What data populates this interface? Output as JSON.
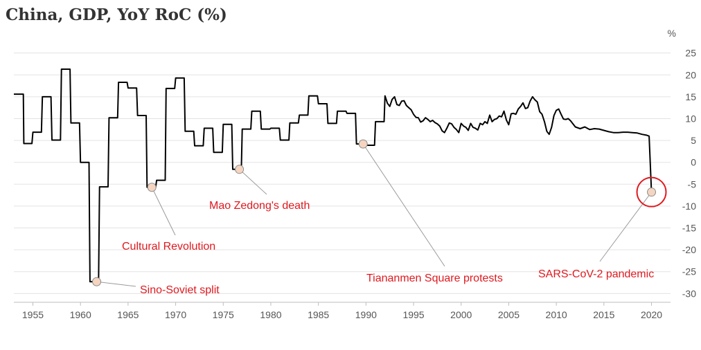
{
  "chart_data": {
    "type": "line",
    "title": "China, GDP, YoY RoC (%)",
    "ylabel": "%",
    "xlabel": "",
    "xlim": [
      1953,
      2022
    ],
    "ylim": [
      -32,
      27
    ],
    "yticks": [
      25,
      20,
      15,
      10,
      5,
      0,
      -5,
      -10,
      -15,
      -20,
      -25,
      -30
    ],
    "ytick_labels": [
      "25",
      "20",
      "15",
      "10",
      "5",
      "0",
      "-5",
      "-10",
      "-15",
      "-20",
      "-25",
      "-30"
    ],
    "xticks": [
      1955,
      1960,
      1965,
      1970,
      1975,
      1980,
      1985,
      1990,
      1995,
      2000,
      2005,
      2010,
      2015,
      2020
    ],
    "xtick_labels": [
      "1955",
      "1960",
      "1965",
      "1970",
      "1975",
      "1980",
      "1985",
      "1990",
      "1995",
      "2000",
      "2005",
      "2010",
      "2015",
      "2020"
    ],
    "grid": true,
    "line_color": "#000000",
    "annotation_color": "#e0191f",
    "highlight_color": "#e0191f",
    "marker_color": "#f5d5c0",
    "series": [
      {
        "name": "China GDP YoY",
        "x": [
          1953,
          1954,
          1954.05,
          1954.9,
          1955,
          1955.9,
          1956,
          1956.9,
          1957,
          1957.9,
          1958,
          1958.9,
          1959,
          1959.9,
          1960,
          1960.9,
          1961,
          1961.9,
          1962,
          1962.9,
          1963,
          1963.9,
          1964,
          1964.9,
          1965,
          1965.9,
          1966,
          1966.9,
          1967,
          1967.9,
          1968,
          1968.9,
          1969,
          1969.9,
          1970,
          1970.9,
          1971,
          1971.9,
          1972,
          1972.9,
          1973,
          1973.9,
          1974,
          1974.9,
          1975,
          1975.9,
          1976,
          1976.9,
          1977,
          1977.9,
          1978,
          1978.9,
          1979,
          1979.9,
          1980,
          1980.9,
          1981,
          1981.9,
          1982,
          1982.9,
          1983,
          1983.9,
          1984,
          1984.9,
          1985,
          1985.9,
          1986,
          1986.9,
          1987,
          1987.9,
          1988,
          1988.9,
          1989,
          1989.9,
          1990,
          1990.9,
          1991,
          1991.9,
          1992,
          1992.25,
          1992.5,
          1992.75,
          1993,
          1993.25,
          1993.5,
          1993.75,
          1994,
          1994.25,
          1994.5,
          1994.75,
          1995,
          1995.25,
          1995.5,
          1995.75,
          1996,
          1996.25,
          1996.5,
          1996.75,
          1997,
          1997.25,
          1997.5,
          1997.75,
          1998,
          1998.25,
          1998.5,
          1998.75,
          1999,
          1999.25,
          1999.5,
          1999.75,
          2000,
          2000.25,
          2000.5,
          2000.75,
          2001,
          2001.25,
          2001.5,
          2001.75,
          2002,
          2002.25,
          2002.5,
          2002.75,
          2003,
          2003.25,
          2003.5,
          2003.75,
          2004,
          2004.25,
          2004.5,
          2004.75,
          2005,
          2005.25,
          2005.5,
          2005.75,
          2006,
          2006.25,
          2006.5,
          2006.75,
          2007,
          2007.25,
          2007.5,
          2007.75,
          2008,
          2008.25,
          2008.5,
          2008.75,
          2009,
          2009.25,
          2009.5,
          2009.75,
          2010,
          2010.25,
          2010.5,
          2010.75,
          2011,
          2011.25,
          2011.5,
          2011.75,
          2012,
          2012.5,
          2013,
          2013.5,
          2014,
          2014.5,
          2015,
          2015.5,
          2016,
          2016.5,
          2017,
          2017.5,
          2018,
          2018.5,
          2019,
          2019.5,
          2019.75,
          2020,
          2020.02
        ],
        "y": [
          15.6,
          15.6,
          4.3,
          4.3,
          6.9,
          6.9,
          15.0,
          15.0,
          5.1,
          5.1,
          21.3,
          21.3,
          9.0,
          9.0,
          0.0,
          0.0,
          -27.3,
          -27.3,
          -5.6,
          -5.6,
          10.2,
          10.2,
          18.3,
          18.3,
          17.0,
          17.0,
          10.7,
          10.7,
          -5.7,
          -5.7,
          -4.1,
          -4.1,
          16.9,
          16.9,
          19.3,
          19.3,
          7.1,
          7.1,
          3.8,
          3.8,
          7.8,
          7.8,
          2.3,
          2.3,
          8.7,
          8.7,
          -1.6,
          -1.6,
          7.6,
          7.6,
          11.7,
          11.7,
          7.6,
          7.6,
          7.8,
          7.8,
          5.1,
          5.1,
          9.0,
          9.0,
          10.8,
          10.8,
          15.2,
          15.2,
          13.4,
          13.4,
          8.9,
          8.9,
          11.7,
          11.7,
          11.2,
          11.2,
          4.2,
          4.2,
          3.9,
          3.9,
          9.3,
          9.3,
          15.2,
          13.5,
          12.8,
          14.4,
          15.0,
          13.2,
          13.0,
          14.0,
          14.1,
          13.0,
          12.5,
          12.0,
          11.0,
          10.3,
          10.2,
          9.2,
          9.5,
          10.2,
          9.8,
          9.3,
          9.6,
          9.1,
          8.8,
          8.3,
          7.2,
          6.8,
          7.8,
          9.0,
          8.8,
          8.0,
          7.5,
          6.8,
          8.9,
          8.3,
          8.0,
          7.3,
          8.9,
          8.0,
          7.8,
          7.4,
          8.9,
          8.6,
          9.3,
          8.9,
          10.8,
          9.3,
          9.8,
          10.0,
          10.6,
          10.4,
          11.7,
          9.7,
          8.6,
          11.1,
          11.2,
          11.0,
          12.2,
          12.8,
          13.6,
          12.3,
          12.5,
          14.0,
          15.0,
          14.3,
          13.8,
          11.6,
          11.0,
          9.3,
          7.1,
          6.4,
          8.0,
          10.7,
          11.9,
          12.2,
          11.0,
          9.9,
          9.8,
          10.0,
          9.5,
          8.8,
          8.1,
          7.7,
          8.1,
          7.5,
          7.7,
          7.6,
          7.3,
          7.0,
          6.8,
          6.8,
          6.9,
          6.9,
          6.8,
          6.7,
          6.4,
          6.2,
          6.0,
          -6.8,
          -6.8
        ]
      }
    ],
    "annotations": [
      {
        "text": "Sino-Soviet split",
        "x": 1961.7,
        "y": -27.3,
        "label_at": "right",
        "highlight": false
      },
      {
        "text": "Cultural Revolution",
        "x": 1967.5,
        "y": -5.7,
        "label_at": "below",
        "highlight": false
      },
      {
        "text": "Mao Zedong's death",
        "x": 1976.7,
        "y": -1.6,
        "label_at": "below-right",
        "highlight": false
      },
      {
        "text": "Tiananmen Square protests",
        "x": 1989.7,
        "y": 4.2,
        "label_at": "below-right",
        "highlight": false
      },
      {
        "text": "SARS-CoV-2 pandemic",
        "x": 2020.0,
        "y": -6.8,
        "label_at": "below-left",
        "highlight": true
      }
    ]
  }
}
